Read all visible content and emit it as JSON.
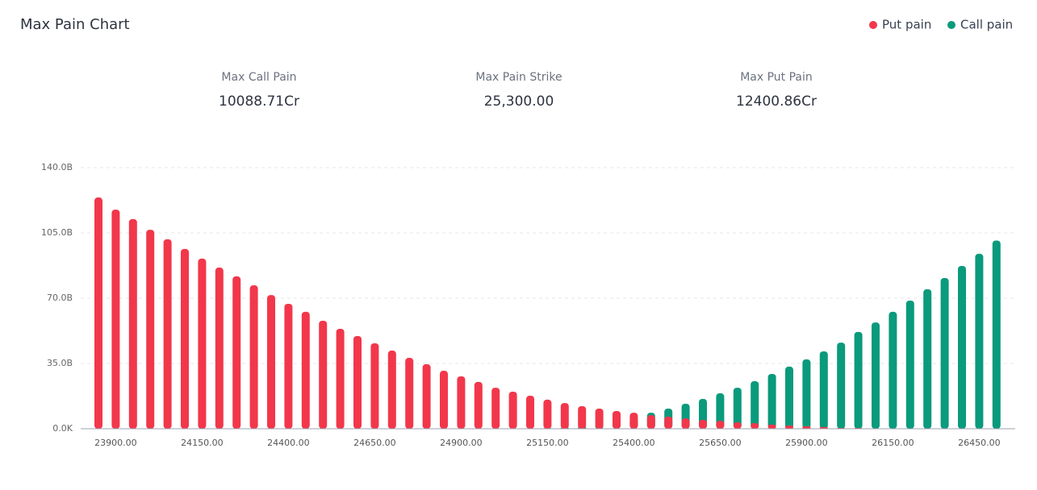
{
  "chart_data": {
    "type": "bar",
    "title": "Max Pain Chart",
    "stats": [
      {
        "label": "Max Call Pain",
        "value": "10088.71Cr"
      },
      {
        "label": "Max Pain Strike",
        "value": "25,300.00"
      },
      {
        "label": "Max Put Pain",
        "value": "12400.86Cr"
      }
    ],
    "categories": [
      null,
      "23900.00",
      null,
      null,
      null,
      null,
      "24150.00",
      null,
      null,
      null,
      null,
      "24400.00",
      null,
      null,
      null,
      null,
      "24650.00",
      null,
      null,
      null,
      null,
      "24900.00",
      null,
      null,
      null,
      null,
      "25150.00",
      null,
      null,
      null,
      null,
      "25400.00",
      null,
      null,
      null,
      null,
      "25650.00",
      null,
      null,
      null,
      null,
      "25900.00",
      null,
      null,
      null,
      null,
      "26150.00",
      null,
      null,
      null,
      null,
      "26450.00",
      null
    ],
    "series": [
      {
        "name": "Call pain",
        "color": "#0a9a7c",
        "values": [
          0,
          0,
          0,
          0,
          0,
          0,
          0,
          0,
          0,
          0,
          0,
          0,
          0,
          0,
          0,
          0,
          0,
          0,
          0,
          0,
          0,
          0,
          0,
          0,
          0,
          0,
          0.3,
          0.6,
          1.0,
          2.5,
          4.0,
          5.5,
          8.6,
          10.8,
          13.4,
          16.0,
          19.0,
          22.0,
          25.5,
          29.4,
          33.3,
          37.2,
          41.5,
          46.2,
          51.9,
          57.0,
          62.7,
          68.7,
          74.8,
          80.8,
          87.3,
          93.8,
          100.9
        ]
      },
      {
        "name": "Put pain",
        "color": "#f2374b",
        "values": [
          124.0,
          117.5,
          112.4,
          106.7,
          101.6,
          96.4,
          91.2,
          86.4,
          81.7,
          76.9,
          71.7,
          67.0,
          62.7,
          57.9,
          53.6,
          49.7,
          45.8,
          41.9,
          38.0,
          34.6,
          31.1,
          28.1,
          25.1,
          22.0,
          19.9,
          17.7,
          15.6,
          13.8,
          12.1,
          10.8,
          9.5,
          8.6,
          7.3,
          6.5,
          5.6,
          4.8,
          4.3,
          3.5,
          3.0,
          2.2,
          1.7,
          1.3,
          0.9,
          0.4,
          0.4,
          0.2,
          0,
          0,
          0,
          0,
          0,
          0,
          0
        ]
      }
    ],
    "ylim": [
      0,
      140
    ],
    "yticks": [
      {
        "value": 0,
        "label": "0.0K"
      },
      {
        "value": 35,
        "label": "35.0B"
      },
      {
        "value": 70,
        "label": "70.0B"
      },
      {
        "value": 105,
        "label": "105.0B"
      },
      {
        "value": 140,
        "label": "140.0B"
      }
    ],
    "grid": true,
    "legend": "top-right"
  }
}
